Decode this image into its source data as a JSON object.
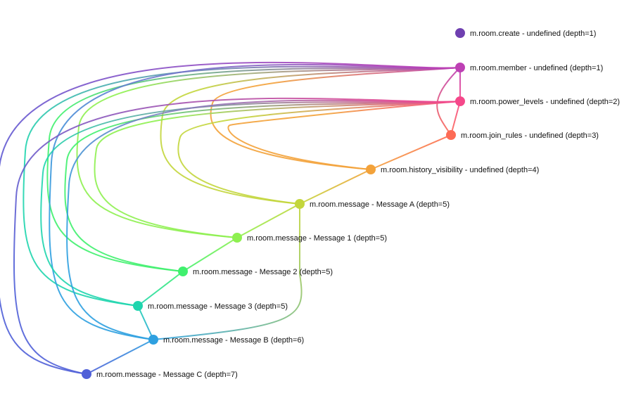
{
  "nodes": [
    {
      "id": "create",
      "label": "m.room.create - undefined (depth=1)",
      "color": "#6f40b0"
    },
    {
      "id": "member",
      "label": "m.room.member - undefined (depth=1)",
      "color": "#bd40b4"
    },
    {
      "id": "power",
      "label": "m.room.power_levels - undefined (depth=2)",
      "color": "#f5488a"
    },
    {
      "id": "join",
      "label": "m.room.join_rules - undefined (depth=3)",
      "color": "#fd6b55"
    },
    {
      "id": "history",
      "label": "m.room.history_visibility - undefined (depth=4)",
      "color": "#f3a23a"
    },
    {
      "id": "A",
      "label": "m.room.message - Message A (depth=5)",
      "color": "#c3d63c"
    },
    {
      "id": "M1",
      "label": "m.room.message - Message 1 (depth=5)",
      "color": "#8ef050"
    },
    {
      "id": "M2",
      "label": "m.room.message - Message 2 (depth=5)",
      "color": "#40f06e"
    },
    {
      "id": "M3",
      "label": "m.room.message - Message 3 (depth=5)",
      "color": "#1fd5ae"
    },
    {
      "id": "B",
      "label": "m.room.message - Message B (depth=6)",
      "color": "#2ea0e0"
    },
    {
      "id": "C",
      "label": "m.room.message - Message C (depth=7)",
      "color": "#5060d8"
    }
  ],
  "edges": [
    [
      "member",
      "power"
    ],
    [
      "member",
      "join"
    ],
    [
      "power",
      "join"
    ],
    [
      "power",
      "history"
    ],
    [
      "join",
      "history"
    ],
    [
      "history",
      "A"
    ],
    [
      "A",
      "M1"
    ],
    [
      "M1",
      "M2"
    ],
    [
      "M2",
      "M3"
    ],
    [
      "M3",
      "B"
    ],
    [
      "A",
      "B"
    ],
    [
      "B",
      "C"
    ],
    [
      "member",
      "history"
    ],
    [
      "member",
      "A"
    ],
    [
      "member",
      "M1"
    ],
    [
      "member",
      "M2"
    ],
    [
      "member",
      "M3"
    ],
    [
      "member",
      "B"
    ],
    [
      "member",
      "C"
    ],
    [
      "power",
      "A"
    ],
    [
      "power",
      "M1"
    ],
    [
      "power",
      "M2"
    ],
    [
      "power",
      "M3"
    ],
    [
      "power",
      "B"
    ],
    [
      "power",
      "C"
    ]
  ]
}
